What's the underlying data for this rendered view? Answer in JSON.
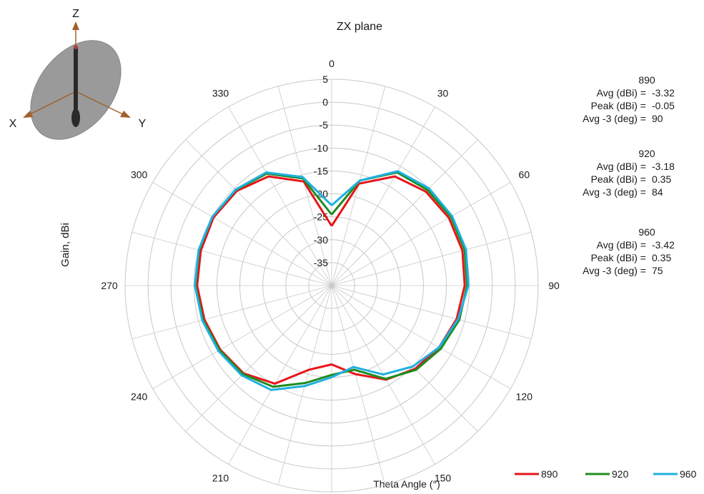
{
  "chart_data": {
    "type": "polar-line",
    "title": "ZX plane",
    "radial_axis_label": "Gain, dBi",
    "angle_axis_label": "Theta  Angle (°)",
    "radial_range": [
      -40,
      5
    ],
    "radial_ticks": [
      5,
      0,
      -5,
      -10,
      -15,
      -20,
      -25,
      -30,
      -35
    ],
    "radial_tick_labels": [
      "5",
      "0",
      "-5",
      "-10",
      "-15",
      "-20",
      "-25",
      "-30",
      "-35"
    ],
    "angle_ticks": [
      0,
      30,
      60,
      90,
      120,
      150,
      180,
      210,
      240,
      270,
      300,
      330
    ],
    "angle_tick_labels": [
      "0",
      "30",
      "60",
      "90",
      "120",
      "150",
      "180",
      "210",
      "240",
      "270",
      "300",
      "330"
    ],
    "angle_direction": "clockwise",
    "zero_at": "top",
    "legend_position": "bottom-right",
    "theta": [
      0,
      15,
      30,
      45,
      60,
      75,
      90,
      105,
      120,
      135,
      150,
      165,
      180,
      195,
      210,
      225,
      240,
      255,
      270,
      285,
      300,
      315,
      330,
      345
    ],
    "series": [
      {
        "name": "890",
        "color": "#e8141a",
        "values": [
          -27,
          -17,
          -12.5,
          -11,
          -10.5,
          -10.5,
          -11,
          -11.8,
          -13,
          -14.3,
          -16.3,
          -20,
          -22.8,
          -21,
          -15.3,
          -12.9,
          -12,
          -11.3,
          -10.7,
          -10.5,
          -10.3,
          -10.8,
          -12.5,
          -16.5
        ]
      },
      {
        "name": "920",
        "color": "#1f8c1f",
        "values": [
          -24.5,
          -16.3,
          -11.5,
          -10.5,
          -10,
          -10,
          -10.5,
          -11.2,
          -12.5,
          -14,
          -16.5,
          -21,
          -20.5,
          -18,
          -14.5,
          -12.7,
          -11.8,
          -11,
          -10.3,
          -10.1,
          -10,
          -10.5,
          -11.8,
          -15.8
        ]
      },
      {
        "name": "960",
        "color": "#1fb0e0",
        "values": [
          -22.5,
          -16.3,
          -11.2,
          -10,
          -9.7,
          -9.7,
          -10.2,
          -11.5,
          -13,
          -15,
          -17.6,
          -21.6,
          -20,
          -17.3,
          -13.7,
          -12.3,
          -11.5,
          -10.8,
          -10.2,
          -10,
          -10,
          -10.4,
          -11.5,
          -15.5
        ]
      }
    ],
    "stats": [
      {
        "freq": "890",
        "avg_label": "Avg (dBi) =",
        "avg": "-3.32",
        "peak_label": "Peak (dBi) =",
        "peak": "-0.05",
        "bw_label": "Avg -3 (deg) =",
        "bw": "90"
      },
      {
        "freq": "920",
        "avg_label": "Avg (dBi) =",
        "avg": "-3.18",
        "peak_label": "Peak (dBi) =",
        "peak": "0.35",
        "bw_label": "Avg -3 (deg) =",
        "bw": "84"
      },
      {
        "freq": "960",
        "avg_label": "Avg (dBi) =",
        "avg": "-3.42",
        "peak_label": "Peak (dBi) =",
        "peak": "0.35",
        "bw_label": "Avg -3 (deg) =",
        "bw": "75"
      }
    ]
  },
  "orientation_icon": {
    "z_label": "Z",
    "x_label": "X",
    "y_label": "Y"
  },
  "colors": {
    "grid": "#c8c8c8",
    "axis_arrow": "#a0622a",
    "ellipse": "#9a9a9a"
  }
}
